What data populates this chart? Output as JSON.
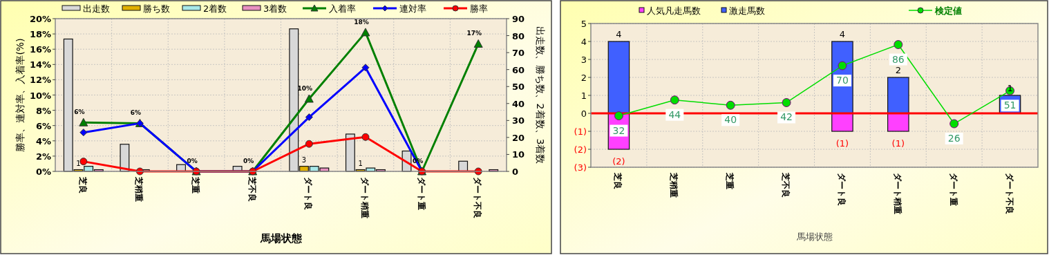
{
  "chart_data": [
    {
      "type": "bar",
      "categories": [
        "芝良",
        "芝稍重",
        "芝重",
        "芝不良",
        "ダート良",
        "ダート稍重",
        "ダート重",
        "ダート不良"
      ],
      "xlabel": "馬場状態",
      "ylabel": "勝率、連対率、入着率(%)",
      "y2label": "出走数、勝ち数、2着数、3着数",
      "series": [
        {
          "name": "出走数",
          "axis": "y2",
          "color": "#d8d8d8",
          "values": [
            78,
            16,
            4,
            3,
            84,
            22,
            12,
            6
          ]
        },
        {
          "name": "勝ち数",
          "axis": "y2",
          "color": "#e0b000",
          "values": [
            1,
            0,
            0,
            0,
            3,
            1,
            0,
            0
          ],
          "value_labels": [
            "1",
            null,
            null,
            null,
            "3",
            "1",
            null,
            null
          ]
        },
        {
          "name": "2着数",
          "axis": "y2",
          "color": "#a8e8e8",
          "values": [
            3,
            1,
            0,
            0,
            3,
            2,
            0,
            0
          ]
        },
        {
          "name": "3着数",
          "axis": "y2",
          "color": "#e890c0",
          "values": [
            1,
            0,
            0,
            0,
            2,
            1,
            0,
            1
          ]
        },
        {
          "name": "入着率",
          "type": "line",
          "color": "#008000",
          "marker": "triangle",
          "values": [
            6.4,
            6.3,
            0,
            0,
            9.5,
            18.2,
            0,
            16.7
          ],
          "value_labels": [
            "6%",
            "6%",
            "0%",
            "0%",
            "10%",
            "18%",
            "0%",
            "17%"
          ]
        },
        {
          "name": "連対率",
          "type": "line",
          "color": "#0000ff",
          "marker": "diamond",
          "values": [
            5.1,
            6.3,
            0,
            0,
            7.1,
            13.6,
            0,
            null
          ]
        },
        {
          "name": "勝率",
          "type": "line",
          "color": "#ff0000",
          "marker": "circle",
          "values": [
            1.3,
            0,
            0,
            0,
            3.6,
            4.5,
            0,
            0
          ]
        }
      ],
      "ylim": [
        0,
        20
      ],
      "yticks": [
        {
          "value": 0,
          "label": "0%"
        },
        {
          "value": 2,
          "label": "2%"
        },
        {
          "value": 4,
          "label": "4%"
        },
        {
          "value": 6,
          "label": "6%"
        },
        {
          "value": 8,
          "label": "8%"
        },
        {
          "value": 10,
          "label": "10%"
        },
        {
          "value": 12,
          "label": "12%"
        },
        {
          "value": 14,
          "label": "14%"
        },
        {
          "value": 16,
          "label": "16%"
        },
        {
          "value": 18,
          "label": "18%"
        },
        {
          "value": 20,
          "label": "20%"
        }
      ],
      "y2lim": [
        0,
        90
      ],
      "y2ticks": [
        0,
        10,
        20,
        30,
        40,
        50,
        60,
        70,
        80,
        90
      ],
      "grid": true,
      "legend": "top"
    },
    {
      "type": "bar",
      "stacked": true,
      "categories": [
        "芝良",
        "芝稍重",
        "芝重",
        "芝不良",
        "ダート良",
        "ダート稍重",
        "ダート重",
        "ダート不良"
      ],
      "xlabel": "馬場状態",
      "series": [
        {
          "name": "人気凡走馬数",
          "color": "#ff40ff",
          "values": [
            -2,
            0,
            0,
            0,
            -1,
            -1,
            0,
            0
          ],
          "value_labels": [
            "(2)",
            null,
            null,
            null,
            "(1)",
            "(1)",
            null,
            null
          ]
        },
        {
          "name": "激走馬数",
          "color": "#4060ff",
          "values": [
            4,
            0,
            0,
            0,
            4,
            2,
            0,
            1
          ],
          "value_labels": [
            "4",
            null,
            null,
            null,
            "4",
            "2",
            null,
            "1"
          ]
        },
        {
          "name": "検定値",
          "type": "line",
          "axis": "y2",
          "color": "#00dd00",
          "marker": "circle",
          "values": [
            32,
            44,
            40,
            42,
            70,
            86,
            26,
            51
          ],
          "value_labels": [
            "32",
            "44",
            "40",
            "42",
            "70",
            "86",
            "26",
            "51"
          ]
        }
      ],
      "ylim": [
        -3,
        5
      ],
      "yticks": [
        {
          "value": 5,
          "label": "5"
        },
        {
          "value": 4,
          "label": "4"
        },
        {
          "value": 3,
          "label": "3"
        },
        {
          "value": 2,
          "label": "2"
        },
        {
          "value": 1,
          "label": "1"
        },
        {
          "value": 0,
          "label": "0"
        },
        {
          "value": -1,
          "label": "(1)"
        },
        {
          "value": -2,
          "label": "(2)"
        },
        {
          "value": -3,
          "label": "(3)"
        }
      ],
      "y2lim": [
        -7,
        102
      ],
      "ref_lines": [
        {
          "axis": "y",
          "value": 0,
          "color": "#ff0000"
        }
      ],
      "grid": true,
      "legend": "top"
    }
  ]
}
